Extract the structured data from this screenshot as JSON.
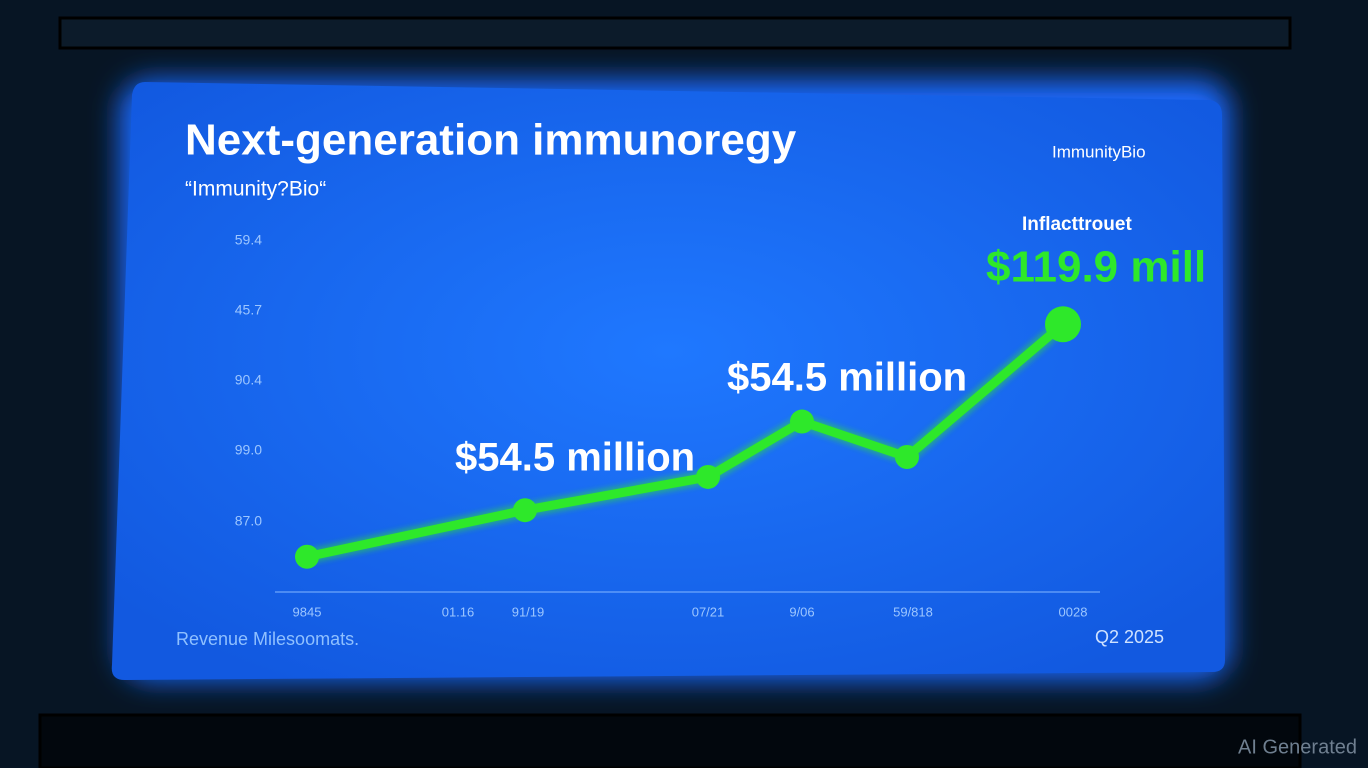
{
  "chart_data": {
    "type": "line",
    "title": "Next-generation immunoregy",
    "subtitle": "“Immunity?Bio“",
    "brand": "ImmunityBio",
    "y_axis_labels": [
      "59.4",
      "45.7",
      "90.4",
      "99.0",
      "87.0"
    ],
    "x_axis_labels": [
      "9845",
      "01.16",
      "91/19",
      "07/21",
      "9/06",
      "59/818",
      "0028"
    ],
    "values": [
      15,
      36,
      51,
      76,
      60,
      119.9
    ],
    "ylim": [
      0,
      120
    ],
    "color": "#2ee82a",
    "annotations": [
      "$54.5 million",
      "$54.5 million",
      "Inflacttrouet",
      "$119.9 mill"
    ],
    "footer_left": "Revenue Milesoomats.",
    "footer_right": "Q2 2025",
    "watermark": "AI Generated"
  }
}
